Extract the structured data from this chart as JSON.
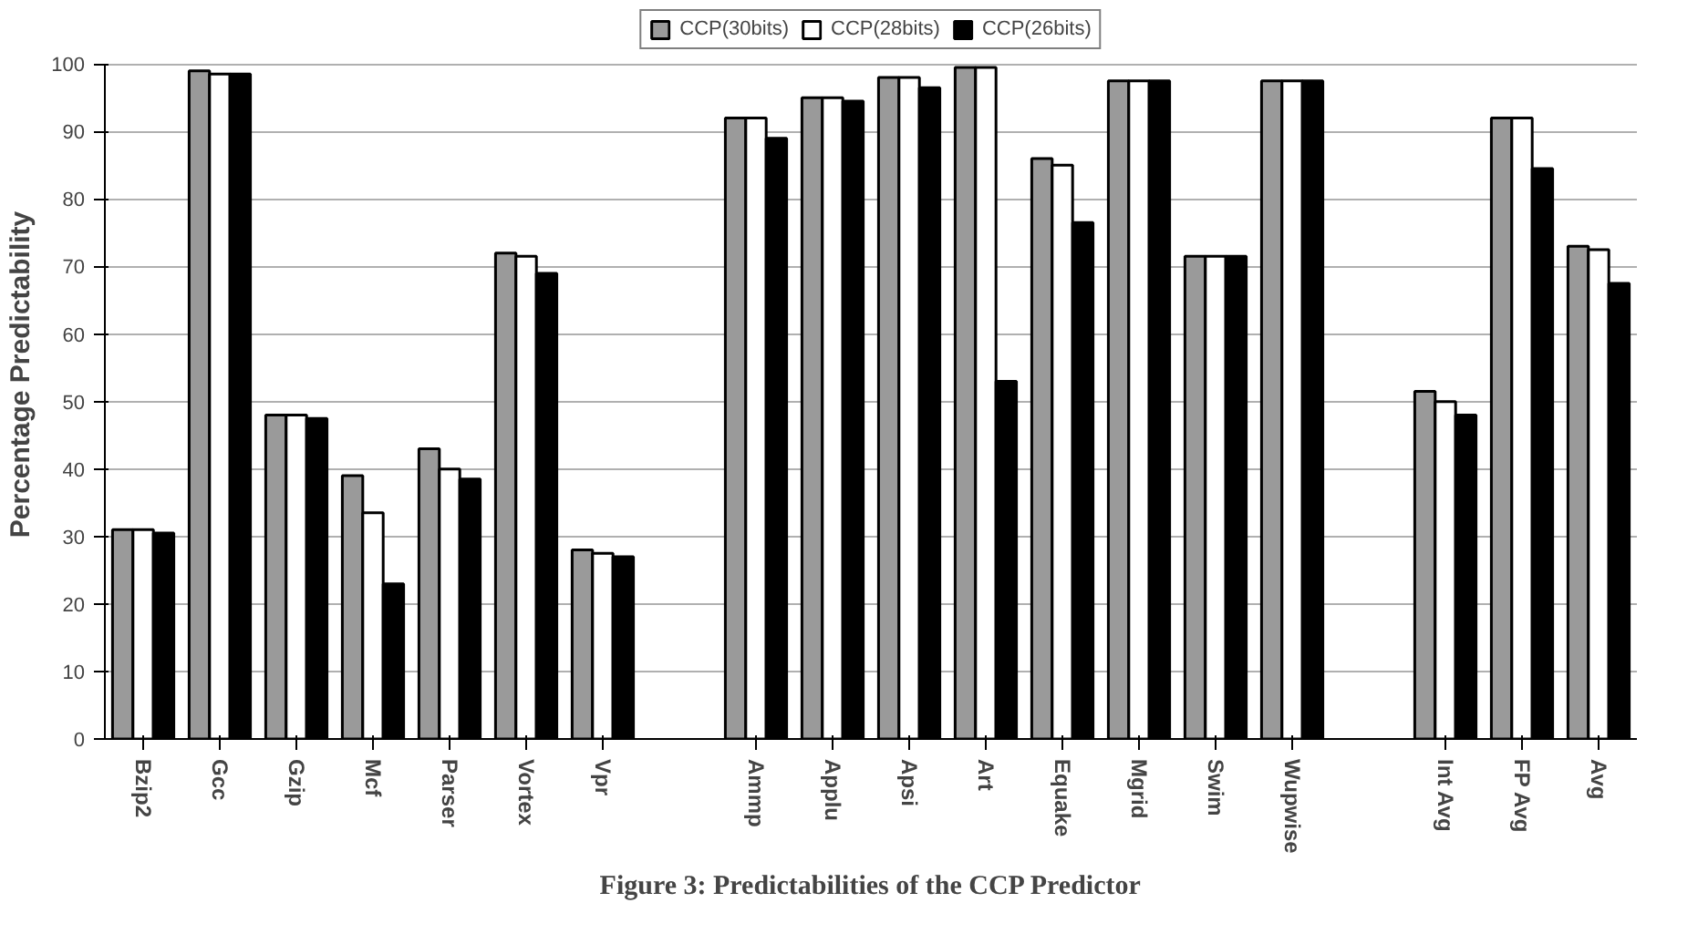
{
  "chart_data": {
    "type": "bar",
    "title": "Figure 3: Predictabilities of the CCP Predictor",
    "ylabel": "Percentage Predictability",
    "categories": [
      "Bzip2",
      "Gcc",
      "Gzip",
      "Mcf",
      "Parser",
      "Vortex",
      "Vpr",
      null,
      "Ammp",
      "Applu",
      "Apsi",
      "Art",
      "Equake",
      "Mgrid",
      "Swim",
      "Wupwise",
      null,
      "Int Avg",
      "FP Avg",
      "Avg"
    ],
    "series": [
      {
        "name": "CCP(30bits)",
        "color": "#9a9a9a",
        "values": [
          31,
          99,
          48,
          39,
          43,
          72,
          28,
          null,
          92,
          95,
          98,
          99.5,
          86,
          97.5,
          71.5,
          97.5,
          null,
          51.5,
          92,
          73
        ]
      },
      {
        "name": "CCP(28bits)",
        "color": "#ffffff",
        "values": [
          31,
          98.5,
          48,
          33.5,
          40,
          71.5,
          27.5,
          null,
          92,
          95,
          98,
          99.5,
          85,
          97.5,
          71.5,
          97.5,
          null,
          50,
          92,
          72.5
        ]
      },
      {
        "name": "CCP(26bits)",
        "color": "#000000",
        "values": [
          30.5,
          98.5,
          47.5,
          23,
          38.5,
          69,
          27,
          null,
          89,
          94.5,
          96.5,
          53,
          76.5,
          97.5,
          71.5,
          97.5,
          null,
          48,
          84.5,
          67.5
        ]
      }
    ],
    "ylim": [
      0,
      100
    ],
    "yticks": [
      0,
      10,
      20,
      30,
      40,
      50,
      60,
      70,
      80,
      90,
      100
    ],
    "grid": "y",
    "legend": "top"
  }
}
